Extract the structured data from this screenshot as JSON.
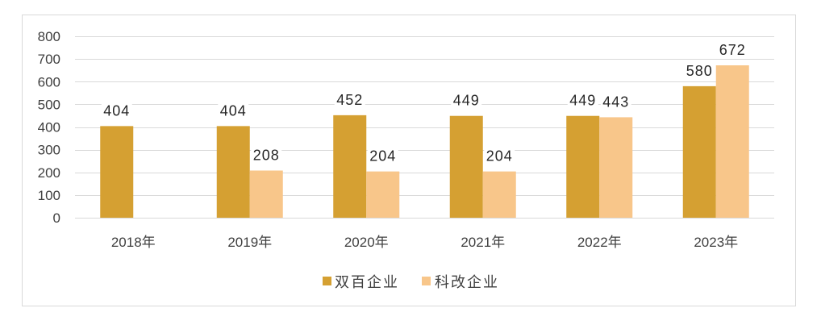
{
  "chart_data": {
    "type": "bar",
    "categories": [
      "2018年",
      "2019年",
      "2020年",
      "2021年",
      "2022年",
      "2023年"
    ],
    "series": [
      {
        "name": "双百企业",
        "values": [
          404,
          404,
          452,
          449,
          449,
          580
        ],
        "color": "#D5A032"
      },
      {
        "name": "科改企业",
        "values": [
          null,
          208,
          204,
          204,
          443,
          672
        ],
        "color": "#F8C68A"
      }
    ],
    "yticks": [
      0,
      100,
      200,
      300,
      400,
      500,
      600,
      700,
      800
    ],
    "ylim": [
      0,
      800
    ],
    "data_labels": true,
    "grid": true,
    "legend": "bottom"
  }
}
